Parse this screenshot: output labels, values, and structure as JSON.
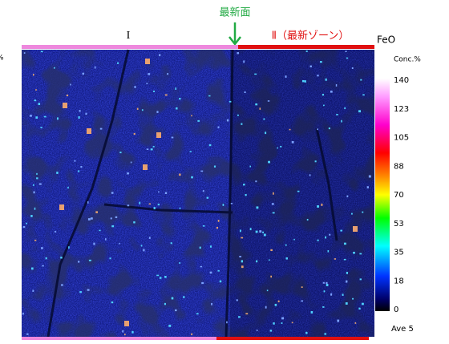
{
  "header": {
    "marker": "最新面",
    "zone_1": "I",
    "zone_2": "Ⅱ（最新ゾーン）",
    "element": "FeO",
    "left_unit": "%"
  },
  "color_scale": {
    "title": "Conc.%",
    "ticks": [
      140,
      123,
      105,
      88,
      70,
      53,
      35,
      18,
      0
    ],
    "footer": "Ave 5"
  }
}
